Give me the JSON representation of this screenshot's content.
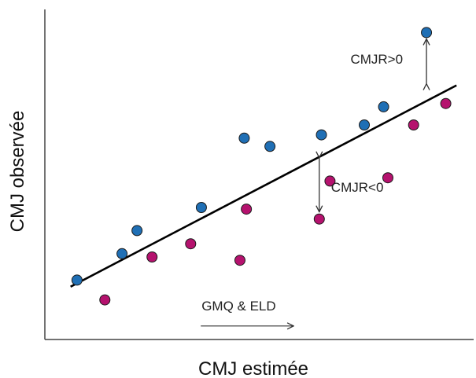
{
  "chart_data": {
    "type": "scatter",
    "title": "",
    "xlabel": "CMJ estimée",
    "ylabel": "CMJ observée",
    "xlim": [
      0,
      100
    ],
    "ylim": [
      0,
      100
    ],
    "grid": false,
    "series": [
      {
        "color": "#1f6fb5",
        "x": [
          7.5,
          18.0,
          21.5,
          36.5,
          46.5,
          52.5,
          64.5,
          74.5,
          79.0,
          89.0
        ],
        "y": [
          18.0,
          26.0,
          33.0,
          40.0,
          61.0,
          58.5,
          62.0,
          65.0,
          70.5,
          93.0
        ]
      },
      {
        "color": "#b5126e",
        "x": [
          14.0,
          25.0,
          34.0,
          45.5,
          47.0,
          64.0,
          66.5,
          80.0,
          86.0,
          93.5
        ],
        "y": [
          12.0,
          25.0,
          29.0,
          24.0,
          39.5,
          36.5,
          48.0,
          49.0,
          65.0,
          71.5
        ]
      }
    ],
    "fit_line": {
      "x": [
        6,
        96
      ],
      "y": [
        16,
        77
      ]
    },
    "annotations": [
      {
        "id": "pos",
        "text": "CMJR>0",
        "from": [
          89.0,
          77.0
        ],
        "to": [
          89.0,
          93.0
        ]
      },
      {
        "id": "neg",
        "text": "CMJR<0",
        "from": [
          64.0,
          56.0
        ],
        "to": [
          64.0,
          36.5
        ]
      },
      {
        "id": "trend",
        "text": "GMQ & ELD",
        "from": [
          36,
          6
        ],
        "to": [
          58,
          6
        ]
      }
    ],
    "colors": {
      "axis": "#444444",
      "line": "#000000",
      "arrow": "#333333"
    }
  }
}
